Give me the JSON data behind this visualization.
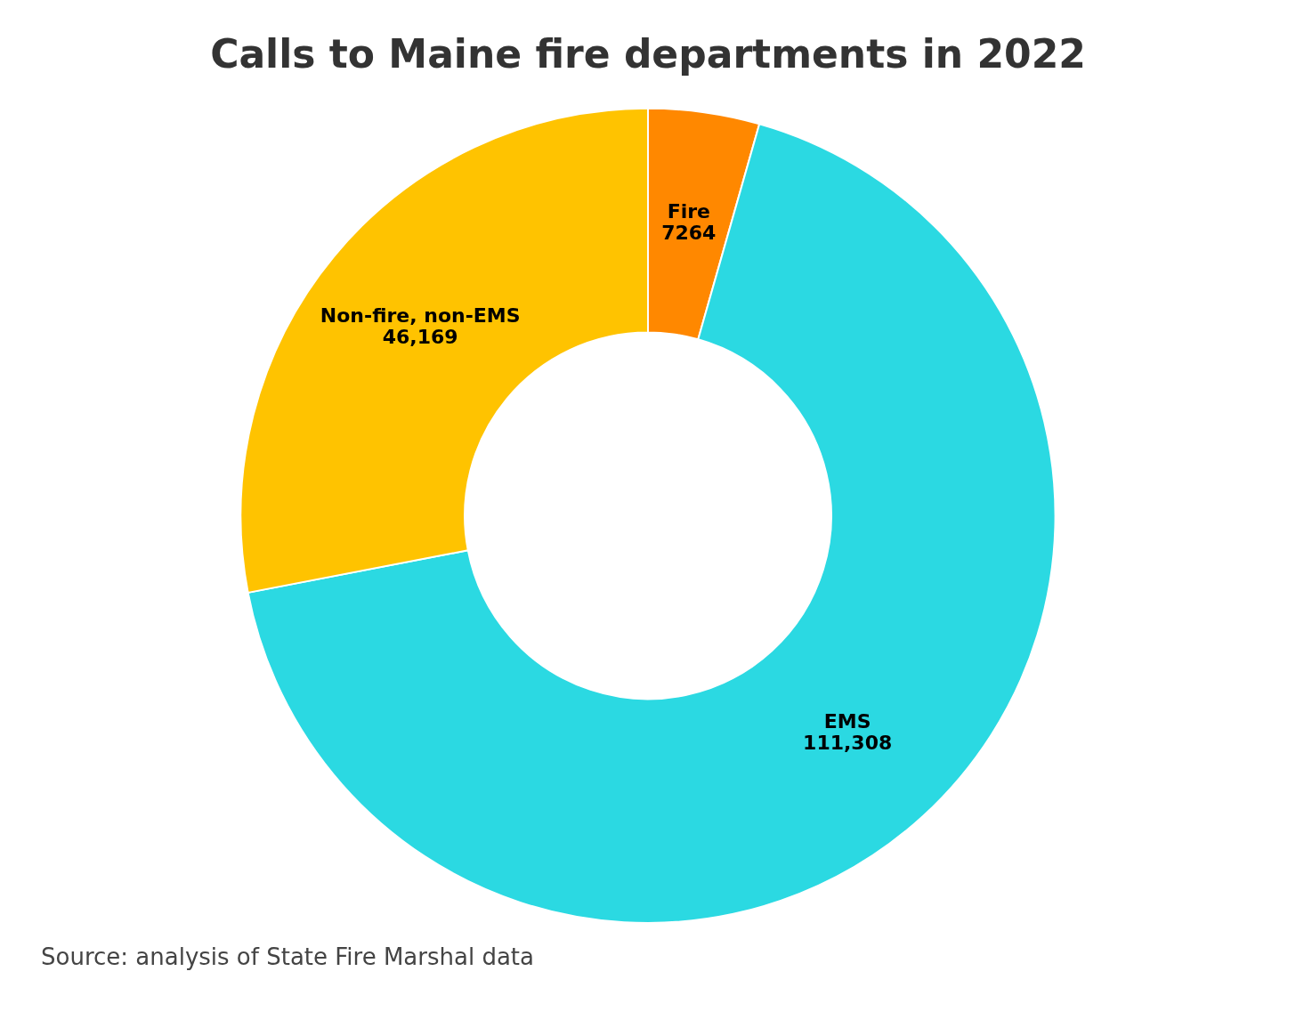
{
  "chart_data": {
    "type": "donut",
    "title": "Calls to Maine fire departments in 2022",
    "categories": [
      "Fire",
      "EMS",
      "Non-fire, non-EMS"
    ],
    "values": [
      7264,
      111308,
      46169
    ],
    "value_labels": [
      "7264",
      "111,308",
      "46,169"
    ],
    "colors": [
      "#ff8800",
      "#2bd9e2",
      "#ffc300"
    ],
    "annotations": [
      "Source: analysis of State Fire Marshal data"
    ]
  }
}
